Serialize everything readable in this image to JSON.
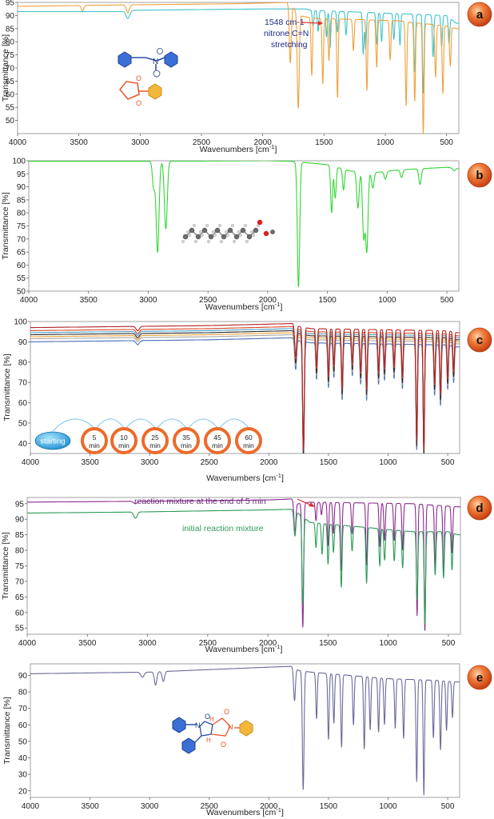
{
  "chart_data": [
    {
      "type": "line",
      "panel": "a",
      "xlabel": "Wavenumbers [cm-1]",
      "ylabel": "Transmittance [%]",
      "xlim": [
        4000,
        400
      ],
      "ylim": [
        45,
        95
      ],
      "xticks": [
        4000,
        3500,
        3000,
        2500,
        2000,
        1500,
        1000,
        500
      ],
      "yticks": [
        50,
        55,
        60,
        65,
        70,
        75,
        80,
        85,
        90,
        95
      ],
      "grid": false,
      "annotations": [
        {
          "text": "1548 cm-1",
          "color": "#1f2a8c"
        },
        {
          "text": "nitrone C=N",
          "color": "#1f2a8c"
        },
        {
          "text": "stretching",
          "color": "#1f2a8c"
        }
      ],
      "series": [
        {
          "name": "nitrone",
          "color": "#3cc4cc",
          "base": [
            [
              4000,
              91.5
            ],
            [
              3150,
              91.5
            ],
            [
              3080,
              92
            ],
            [
              2000,
              92.5
            ],
            [
              1650,
              92.5
            ],
            [
              1600,
              92
            ],
            [
              500,
              90
            ],
            [
              420,
              87
            ]
          ],
          "dips": [
            [
              3100,
              3,
              15
            ],
            [
              1590,
              6,
              6
            ],
            [
              1548,
              8,
              6
            ],
            [
              1480,
              10,
              6
            ],
            [
              1450,
              14,
              6
            ],
            [
              1390,
              8,
              6
            ],
            [
              1320,
              9,
              6
            ],
            [
              1180,
              16,
              6
            ],
            [
              1160,
              14,
              6
            ],
            [
              1070,
              12,
              6
            ],
            [
              1030,
              11,
              6
            ],
            [
              930,
              10,
              6
            ],
            [
              880,
              12,
              6
            ],
            [
              760,
              22,
              6
            ],
            [
              690,
              30,
              6
            ],
            [
              610,
              16,
              6
            ],
            [
              540,
              12,
              6
            ],
            [
              480,
              10,
              6
            ]
          ]
        },
        {
          "name": "N-phenylmaleimide",
          "color": "#f0a03c",
          "base": [
            [
              4000,
              93.5
            ],
            [
              3200,
              94
            ],
            [
              2200,
              94.5
            ],
            [
              1800,
              95
            ],
            [
              1750,
              93
            ],
            [
              1700,
              90
            ],
            [
              1600,
              89
            ],
            [
              900,
              88
            ],
            [
              700,
              87
            ],
            [
              500,
              86
            ],
            [
              420,
              85
            ]
          ],
          "dips": [
            [
              3470,
              2,
              10
            ],
            [
              3100,
              3,
              12
            ],
            [
              1775,
              22,
              8
            ],
            [
              1710,
              36,
              8
            ],
            [
              1600,
              22,
              6
            ],
            [
              1510,
              25,
              6
            ],
            [
              1460,
              16,
              6
            ],
            [
              1390,
              30,
              6
            ],
            [
              1260,
              12,
              6
            ],
            [
              1150,
              27,
              6
            ],
            [
              1070,
              18,
              6
            ],
            [
              960,
              15,
              6
            ],
            [
              830,
              32,
              6
            ],
            [
              760,
              30,
              6
            ],
            [
              690,
              42,
              6
            ],
            [
              590,
              20,
              6
            ],
            [
              530,
              26,
              6
            ],
            [
              470,
              15,
              6
            ]
          ]
        }
      ]
    },
    {
      "type": "line",
      "panel": "b",
      "xlabel": "Wavenumbers [cm-1]",
      "ylabel": "Transmittance [%]",
      "xlim": [
        4000,
        400
      ],
      "ylim": [
        50,
        100
      ],
      "xticks": [
        4000,
        3500,
        3000,
        2500,
        2000,
        1500,
        1000,
        500
      ],
      "yticks": [
        50,
        55,
        60,
        65,
        70,
        75,
        80,
        85,
        90,
        95,
        100
      ],
      "grid": false,
      "series": [
        {
          "name": "methyl ester",
          "color": "#33d633",
          "base": [
            [
              4000,
              99.8
            ],
            [
              3000,
              99.8
            ],
            [
              2000,
              100
            ],
            [
              1800,
              99.8
            ],
            [
              1500,
              98.5
            ],
            [
              1300,
              96
            ],
            [
              1100,
              95.5
            ],
            [
              900,
              96.5
            ],
            [
              700,
              97
            ],
            [
              500,
              97.5
            ],
            [
              420,
              97
            ]
          ],
          "dips": [
            [
              2955,
              10,
              10
            ],
            [
              2922,
              35,
              12
            ],
            [
              2853,
              26,
              12
            ],
            [
              1742,
              48,
              10
            ],
            [
              1465,
              18,
              8
            ],
            [
              1435,
              12,
              8
            ],
            [
              1365,
              8,
              8
            ],
            [
              1245,
              14,
              10
            ],
            [
              1196,
              25,
              10
            ],
            [
              1170,
              30,
              10
            ],
            [
              1120,
              6,
              10
            ],
            [
              1015,
              3,
              10
            ],
            [
              880,
              3,
              10
            ],
            [
              725,
              6,
              10
            ],
            [
              440,
              1,
              10
            ]
          ]
        }
      ]
    },
    {
      "type": "line",
      "panel": "c",
      "xlabel": "Wavenumbers [cm-1]",
      "ylabel": "Transmittance [%]",
      "xlim": [
        4000,
        400
      ],
      "ylim": [
        35,
        100
      ],
      "xticks": [
        4000,
        3500,
        3000,
        2500,
        2000,
        1500,
        1000,
        500
      ],
      "yticks": [
        40,
        50,
        60,
        70,
        80,
        90,
        100
      ],
      "grid": false,
      "timeline": [
        "starting",
        "5 min",
        "10 min",
        "25 min",
        "35 min",
        "45 min",
        "60 min"
      ],
      "series": [
        {
          "name": "starting",
          "color": "#4a6fb5",
          "offset": -4.5,
          "depth": 1.0
        },
        {
          "name": "5 min",
          "color": "#a6a6a6",
          "offset": -3,
          "depth": 0.98
        },
        {
          "name": "10 min",
          "color": "#e8a23c",
          "offset": -2,
          "depth": 0.96
        },
        {
          "name": "25 min",
          "color": "#2d2d2d",
          "offset": -1,
          "depth": 1.03
        },
        {
          "name": "35 min",
          "color": "#4aa0c8",
          "offset": 0,
          "depth": 0.95
        },
        {
          "name": "45 min",
          "color": "#d9482a",
          "offset": 1,
          "depth": 1.01
        },
        {
          "name": "60 min",
          "color": "#b02424",
          "offset": 2.5,
          "depth": 1.05
        }
      ],
      "base": [
        [
          4000,
          94.5
        ],
        [
          2500,
          95.5
        ],
        [
          1800,
          96.5
        ],
        [
          1740,
          95
        ],
        [
          1650,
          94
        ],
        [
          500,
          93
        ],
        [
          420,
          92
        ]
      ],
      "dips": [
        [
          3100,
          2,
          14
        ],
        [
          1775,
          15,
          8
        ],
        [
          1710,
          58,
          7
        ],
        [
          1600,
          18,
          6
        ],
        [
          1500,
          22,
          6
        ],
        [
          1455,
          17,
          6
        ],
        [
          1385,
          28,
          6
        ],
        [
          1300,
          16,
          6
        ],
        [
          1230,
          20,
          6
        ],
        [
          1180,
          28,
          6
        ],
        [
          1080,
          20,
          6
        ],
        [
          1030,
          18,
          6
        ],
        [
          950,
          17,
          6
        ],
        [
          880,
          22,
          6
        ],
        [
          760,
          52,
          6
        ],
        [
          700,
          56,
          6
        ],
        [
          610,
          25,
          6
        ],
        [
          560,
          30,
          6
        ],
        [
          500,
          22,
          6
        ],
        [
          450,
          18,
          6
        ]
      ]
    },
    {
      "type": "line",
      "panel": "d",
      "xlabel": "Wavenumbers [cm-1]",
      "ylabel": "Transmittance [%]",
      "xlim": [
        4000,
        400
      ],
      "ylim": [
        53,
        97
      ],
      "xticks": [
        4000,
        3500,
        3000,
        2500,
        2000,
        1500,
        1000,
        500
      ],
      "yticks": [
        55,
        60,
        65,
        70,
        75,
        80,
        85,
        90,
        95
      ],
      "grid": false,
      "series": [
        {
          "name": "reaction mixture at the end of 5 min",
          "color": "#8b2b8f",
          "base": [
            [
              4000,
              95.5
            ],
            [
              3000,
              95.8
            ],
            [
              2000,
              96.2
            ],
            [
              1800,
              96.5
            ],
            [
              1750,
              95
            ],
            [
              1650,
              95.5
            ],
            [
              800,
              95
            ],
            [
              420,
              94
            ]
          ],
          "dips": [
            [
              3100,
              0.8,
              14
            ],
            [
              1775,
              10,
              8
            ],
            [
              1710,
              40,
              7
            ],
            [
              1600,
              6,
              6
            ],
            [
              1555,
              4,
              6
            ],
            [
              1500,
              14,
              6
            ],
            [
              1455,
              10,
              6
            ],
            [
              1390,
              22,
              6
            ],
            [
              1300,
              10,
              6
            ],
            [
              1180,
              20,
              6
            ],
            [
              1070,
              14,
              6
            ],
            [
              1030,
              12,
              6
            ],
            [
              950,
              12,
              6
            ],
            [
              880,
              15,
              6
            ],
            [
              760,
              36,
              6
            ],
            [
              695,
              41,
              6
            ],
            [
              610,
              20,
              6
            ],
            [
              540,
              22,
              6
            ],
            [
              470,
              15,
              6
            ]
          ]
        },
        {
          "name": "initial reaction mixture",
          "color": "#2e9a58",
          "base": [
            [
              4000,
              92
            ],
            [
              3150,
              92.3
            ],
            [
              2000,
              93
            ],
            [
              1800,
              93.2
            ],
            [
              1750,
              92
            ],
            [
              1650,
              89
            ],
            [
              800,
              86
            ],
            [
              500,
              86
            ],
            [
              420,
              85
            ]
          ],
          "dips": [
            [
              3100,
              2,
              14
            ],
            [
              1775,
              8,
              8
            ],
            [
              1710,
              28,
              7
            ],
            [
              1600,
              8,
              6
            ],
            [
              1550,
              10,
              6
            ],
            [
              1500,
              13,
              6
            ],
            [
              1455,
              9,
              6
            ],
            [
              1390,
              20,
              6
            ],
            [
              1300,
              8,
              6
            ],
            [
              1180,
              18,
              6
            ],
            [
              1070,
              12,
              6
            ],
            [
              1030,
              10,
              6
            ],
            [
              950,
              10,
              6
            ],
            [
              880,
              12,
              6
            ],
            [
              760,
              22,
              6
            ],
            [
              695,
              30,
              6
            ],
            [
              610,
              14,
              6
            ],
            [
              540,
              15,
              6
            ],
            [
              470,
              12,
              6
            ]
          ]
        }
      ]
    },
    {
      "type": "line",
      "panel": "e",
      "xlabel": "Wavenumbers [cm-1]",
      "ylabel": "Transmittance [%]",
      "xlim": [
        4000,
        400
      ],
      "ylim": [
        16,
        97
      ],
      "xticks": [
        4000,
        3500,
        3000,
        2500,
        2000,
        1500,
        1000,
        500
      ],
      "yticks": [
        20,
        30,
        40,
        50,
        60,
        70,
        80,
        90
      ],
      "grid": false,
      "series": [
        {
          "name": "cycloadduct",
          "color": "#6a6a9c",
          "base": [
            [
              4000,
              91
            ],
            [
              3000,
              92
            ],
            [
              2000,
              95
            ],
            [
              1800,
              95.5
            ],
            [
              1750,
              93
            ],
            [
              1650,
              92
            ],
            [
              1000,
              88
            ],
            [
              600,
              87
            ],
            [
              420,
              86
            ]
          ],
          "dips": [
            [
              3060,
              3,
              14
            ],
            [
              2950,
              8,
              10
            ],
            [
              2885,
              6,
              10
            ],
            [
              1785,
              20,
              8
            ],
            [
              1712,
              72,
              7
            ],
            [
              1600,
              28,
              6
            ],
            [
              1500,
              40,
              6
            ],
            [
              1455,
              30,
              6
            ],
            [
              1390,
              44,
              6
            ],
            [
              1290,
              30,
              6
            ],
            [
              1200,
              44,
              6
            ],
            [
              1150,
              32,
              6
            ],
            [
              1080,
              33,
              6
            ],
            [
              1030,
              28,
              6
            ],
            [
              940,
              30,
              6
            ],
            [
              870,
              36,
              6
            ],
            [
              760,
              62,
              6
            ],
            [
              700,
              70,
              6
            ],
            [
              620,
              35,
              6
            ],
            [
              560,
              42,
              6
            ],
            [
              510,
              30,
              6
            ],
            [
              460,
              22,
              6
            ]
          ]
        }
      ]
    }
  ],
  "badges": [
    "a",
    "b",
    "c",
    "d",
    "e"
  ],
  "text_b_y_axis": "Transmittance [%]"
}
